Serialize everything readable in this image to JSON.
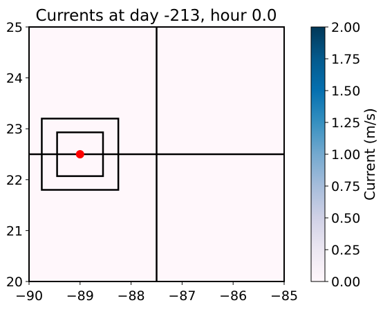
{
  "chart_data": {
    "type": "heatmap",
    "title": "Currents at day -213, hour 0.0",
    "xlim": [
      -90,
      -85
    ],
    "ylim": [
      20,
      25
    ],
    "x_ticks": [
      "−90",
      "−89",
      "−88",
      "−87",
      "−86",
      "−85"
    ],
    "y_ticks": [
      "20",
      "21",
      "22",
      "23",
      "24",
      "25"
    ],
    "x_tick_values": [
      -90,
      -89,
      -88,
      -87,
      -86,
      -85
    ],
    "y_tick_values": [
      20,
      21,
      22,
      23,
      24,
      25
    ],
    "field_value": 0.0,
    "colorbar": {
      "label": "Current (m/s)",
      "range": [
        0.0,
        2.0
      ],
      "ticks": [
        "0.00",
        "0.25",
        "0.50",
        "0.75",
        "1.00",
        "1.25",
        "1.50",
        "1.75",
        "2.00"
      ],
      "tick_values": [
        0.0,
        0.25,
        0.5,
        0.75,
        1.0,
        1.25,
        1.5,
        1.75,
        2.0
      ],
      "colors": [
        "#fff7fb",
        "#ece7f2",
        "#d0d1e6",
        "#a6bddb",
        "#74a9cf",
        "#3690c0",
        "#0570b0",
        "#045a8d",
        "#023858"
      ]
    },
    "lines": {
      "vertical_x": -87.5,
      "horizontal_y": 22.5
    },
    "boxes": [
      {
        "x0": -89.75,
        "x1": -88.25,
        "y0": 21.8,
        "y1": 23.2
      },
      {
        "x0": -89.45,
        "x1": -88.55,
        "y0": 22.07,
        "y1": 22.93
      }
    ],
    "point": {
      "x": -89.0,
      "y": 22.5,
      "color": "#ff0000"
    }
  }
}
